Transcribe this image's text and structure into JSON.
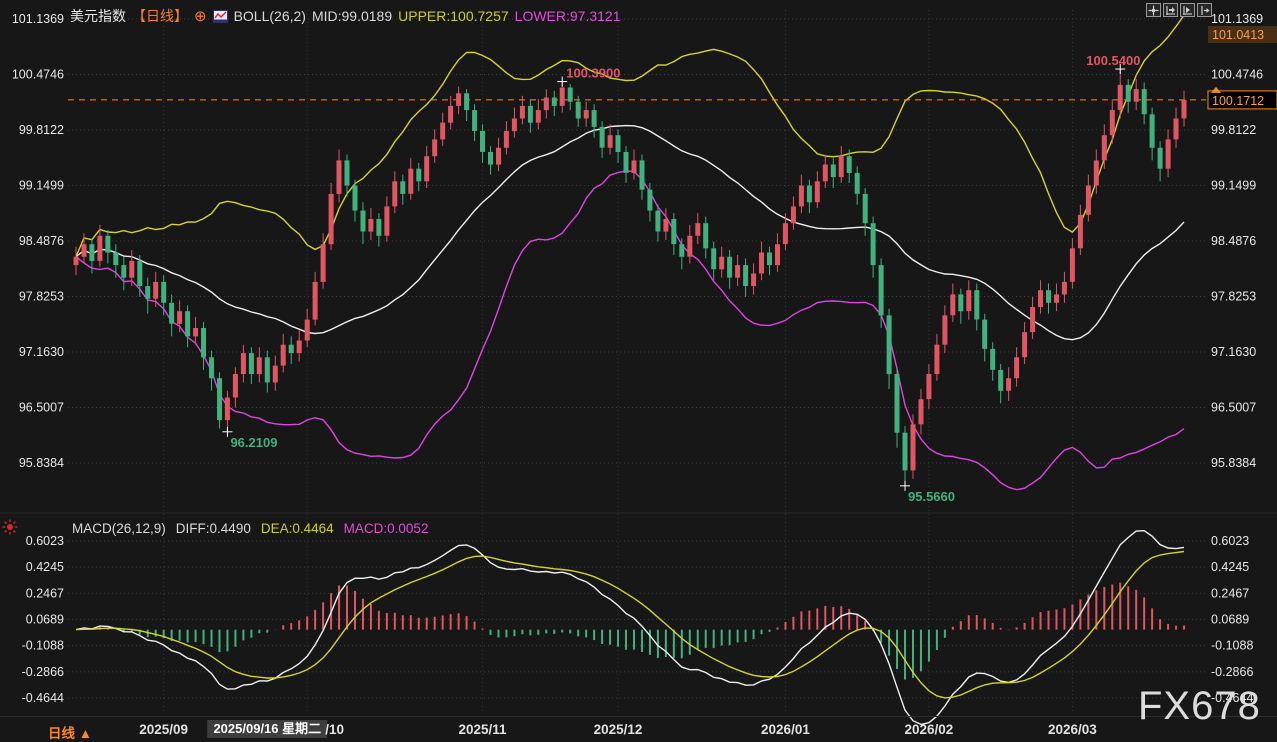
{
  "header": {
    "symbol": "美元指数",
    "period_tag": "【日线】",
    "add_icon": "⊕",
    "boll_label": "BOLL(26,2)",
    "boll_mid": "MID:99.0189",
    "boll_upper": "UPPER:100.7257",
    "boll_lower": "LOWER:97.3121"
  },
  "macd_header": {
    "label": "MACD(26,12,9)",
    "diff": "DIFF:0.4490",
    "dea": "DEA:0.4464",
    "macd": "MACD:0.0052"
  },
  "toolbar": {
    "icons": [
      "pan-tool-icon",
      "axis-scale-left-icon",
      "axis-scale-right-icon",
      "jump-to-latest-icon"
    ]
  },
  "bottom_bar": {
    "period": "日线",
    "arrow": "▲"
  },
  "watermark": "FX678",
  "colors": {
    "background": "#171717",
    "up_candle": "#e25562",
    "down_candle": "#3fb27f",
    "boll_mid": "#efefef",
    "boll_upper": "#d4d42a",
    "boll_lower": "#e044e0",
    "macd_diff_line": "#efefef",
    "macd_dea_line": "#d4d42a",
    "accent_orange": "#ff8a1e",
    "grid": "#3d3d3d",
    "axis_text": "#e8e8e8",
    "badge_high_bg": "#4a2f14",
    "badge_high_text": "#f7a243"
  },
  "chart_data": {
    "type": "candlestick",
    "title": "美元指数 日线 BOLL MACD",
    "price_axis_labels": [
      "101.1369",
      "100.4746",
      "99.8122",
      "99.1499",
      "98.4876",
      "97.8253",
      "97.1630",
      "96.5007",
      "95.8384"
    ],
    "macd_axis_labels": [
      "0.6023",
      "0.4245",
      "0.2467",
      "0.0689",
      "-0.1088",
      "-0.2866",
      "-0.4644"
    ],
    "price_ylim": [
      95.8384,
      101.1369
    ],
    "macd_ylim": [
      -0.4644,
      0.6023
    ],
    "last_price": "100.1712",
    "high_badge": "101.0413",
    "grid": "dotted",
    "legend_position": "top-left",
    "indicators": {
      "boll_period": 26,
      "boll_mult": 2,
      "macd_fast": 12,
      "macd_slow": 26,
      "macd_signal": 9
    },
    "month_ticks": [
      {
        "label": "2025/09",
        "index": 11
      },
      {
        "label": "/10",
        "index": 29
      },
      {
        "label": "2025/11",
        "index": 51
      },
      {
        "label": "2025/12",
        "index": 68
      },
      {
        "label": "2026/01",
        "index": 89
      },
      {
        "label": "2026/02",
        "index": 107
      },
      {
        "label": "2026/03",
        "index": 125
      }
    ],
    "selected_date": {
      "label": "2025/09/16 星期二",
      "index": 24
    },
    "annotations": [
      {
        "index": 19,
        "price": 96.2109,
        "text": "96.2109",
        "type": "low"
      },
      {
        "index": 61,
        "price": 100.39,
        "text": "100.3900",
        "type": "high"
      },
      {
        "index": 104,
        "price": 95.566,
        "text": "95.5660",
        "type": "low"
      },
      {
        "index": 131,
        "price": 100.54,
        "text": "100.5400",
        "type": "high"
      }
    ],
    "candles": [
      [
        98.2,
        98.42,
        98.08,
        98.3
      ],
      [
        98.3,
        98.58,
        98.22,
        98.45
      ],
      [
        98.45,
        98.52,
        98.1,
        98.25
      ],
      [
        98.25,
        98.68,
        98.18,
        98.55
      ],
      [
        98.55,
        98.62,
        98.22,
        98.35
      ],
      [
        98.35,
        98.45,
        98.05,
        98.2
      ],
      [
        98.2,
        98.3,
        97.9,
        98.05
      ],
      [
        98.05,
        98.38,
        97.95,
        98.25
      ],
      [
        98.25,
        98.32,
        97.82,
        97.95
      ],
      [
        97.95,
        98.05,
        97.62,
        97.8
      ],
      [
        97.8,
        98.12,
        97.7,
        98.0
      ],
      [
        98.0,
        98.08,
        97.6,
        97.75
      ],
      [
        97.75,
        97.85,
        97.35,
        97.5
      ],
      [
        97.5,
        97.78,
        97.4,
        97.65
      ],
      [
        97.65,
        97.72,
        97.22,
        97.35
      ],
      [
        97.35,
        97.58,
        97.25,
        97.45
      ],
      [
        97.45,
        97.52,
        96.95,
        97.1
      ],
      [
        97.1,
        97.18,
        96.7,
        96.85
      ],
      [
        96.85,
        96.92,
        96.25,
        96.35
      ],
      [
        96.35,
        96.7,
        96.2109,
        96.62
      ],
      [
        96.62,
        96.98,
        96.5,
        96.9
      ],
      [
        96.9,
        97.25,
        96.8,
        97.15
      ],
      [
        97.15,
        97.22,
        96.78,
        96.9
      ],
      [
        96.9,
        97.22,
        96.8,
        97.1
      ],
      [
        97.1,
        97.18,
        96.68,
        96.8
      ],
      [
        96.8,
        97.12,
        96.7,
        97.0
      ],
      [
        97.0,
        97.38,
        96.92,
        97.25
      ],
      [
        97.25,
        97.35,
        97.02,
        97.15
      ],
      [
        97.15,
        97.42,
        97.05,
        97.3
      ],
      [
        97.3,
        97.68,
        97.22,
        97.55
      ],
      [
        97.55,
        98.12,
        97.48,
        98.0
      ],
      [
        98.0,
        98.58,
        97.92,
        98.45
      ],
      [
        98.45,
        99.18,
        98.38,
        99.05
      ],
      [
        99.05,
        99.58,
        98.95,
        99.45
      ],
      [
        99.45,
        99.52,
        99.02,
        99.15
      ],
      [
        99.15,
        99.22,
        98.72,
        98.85
      ],
      [
        98.85,
        98.95,
        98.45,
        98.6
      ],
      [
        98.6,
        98.88,
        98.5,
        98.75
      ],
      [
        98.75,
        98.82,
        98.42,
        98.55
      ],
      [
        98.55,
        99.02,
        98.48,
        98.9
      ],
      [
        98.9,
        99.32,
        98.82,
        99.2
      ],
      [
        99.2,
        99.28,
        98.92,
        99.05
      ],
      [
        99.05,
        99.48,
        98.98,
        99.35
      ],
      [
        99.35,
        99.42,
        99.08,
        99.2
      ],
      [
        99.2,
        99.62,
        99.12,
        99.5
      ],
      [
        99.5,
        99.82,
        99.42,
        99.7
      ],
      [
        99.7,
        100.02,
        99.62,
        99.9
      ],
      [
        99.9,
        100.22,
        99.82,
        100.1
      ],
      [
        100.1,
        100.33,
        100.0,
        100.25
      ],
      [
        100.25,
        100.3,
        99.92,
        100.05
      ],
      [
        100.05,
        100.12,
        99.68,
        99.8
      ],
      [
        99.8,
        99.88,
        99.42,
        99.55
      ],
      [
        99.55,
        99.62,
        99.28,
        99.4
      ],
      [
        99.4,
        99.72,
        99.32,
        99.6
      ],
      [
        99.6,
        99.92,
        99.52,
        99.8
      ],
      [
        99.8,
        100.08,
        99.72,
        99.95
      ],
      [
        99.95,
        100.22,
        99.88,
        100.1
      ],
      [
        100.1,
        100.18,
        99.78,
        99.9
      ],
      [
        99.9,
        100.18,
        99.82,
        100.05
      ],
      [
        100.05,
        100.3,
        99.95,
        100.2
      ],
      [
        100.2,
        100.28,
        99.98,
        100.1
      ],
      [
        100.1,
        100.39,
        100.02,
        100.32
      ],
      [
        100.32,
        100.36,
        100.05,
        100.15
      ],
      [
        100.15,
        100.22,
        99.85,
        99.95
      ],
      [
        99.95,
        100.15,
        99.85,
        100.05
      ],
      [
        100.05,
        100.12,
        99.72,
        99.85
      ],
      [
        99.85,
        99.92,
        99.48,
        99.6
      ],
      [
        99.6,
        99.88,
        99.52,
        99.75
      ],
      [
        99.75,
        99.82,
        99.42,
        99.55
      ],
      [
        99.55,
        99.62,
        99.18,
        99.3
      ],
      [
        99.3,
        99.58,
        99.22,
        99.45
      ],
      [
        99.45,
        99.52,
        98.98,
        99.1
      ],
      [
        99.1,
        99.18,
        98.72,
        98.85
      ],
      [
        98.85,
        98.92,
        98.48,
        98.6
      ],
      [
        98.6,
        98.88,
        98.5,
        98.75
      ],
      [
        98.75,
        98.82,
        98.32,
        98.45
      ],
      [
        98.45,
        98.52,
        98.15,
        98.3
      ],
      [
        98.3,
        98.68,
        98.22,
        98.55
      ],
      [
        98.55,
        98.82,
        98.45,
        98.7
      ],
      [
        98.7,
        98.78,
        98.28,
        98.4
      ],
      [
        98.4,
        98.48,
        98.02,
        98.15
      ],
      [
        98.15,
        98.42,
        98.05,
        98.3
      ],
      [
        98.3,
        98.38,
        97.92,
        98.05
      ],
      [
        98.05,
        98.32,
        97.95,
        98.2
      ],
      [
        98.2,
        98.28,
        97.82,
        97.95
      ],
      [
        97.95,
        98.22,
        97.85,
        98.1
      ],
      [
        98.1,
        98.48,
        98.02,
        98.35
      ],
      [
        98.35,
        98.42,
        98.08,
        98.2
      ],
      [
        98.2,
        98.58,
        98.12,
        98.45
      ],
      [
        98.45,
        98.82,
        98.38,
        98.7
      ],
      [
        98.7,
        99.02,
        98.62,
        98.9
      ],
      [
        98.9,
        99.28,
        98.82,
        99.15
      ],
      [
        99.15,
        99.22,
        98.82,
        98.95
      ],
      [
        98.95,
        99.32,
        98.88,
        99.2
      ],
      [
        99.2,
        99.52,
        99.12,
        99.4
      ],
      [
        99.4,
        99.48,
        99.12,
        99.25
      ],
      [
        99.25,
        99.62,
        99.18,
        99.5
      ],
      [
        99.5,
        99.58,
        99.18,
        99.3
      ],
      [
        99.3,
        99.38,
        98.92,
        99.05
      ],
      [
        99.05,
        99.12,
        98.55,
        98.7
      ],
      [
        98.7,
        98.78,
        98.05,
        98.2
      ],
      [
        98.2,
        98.28,
        97.45,
        97.6
      ],
      [
        97.6,
        97.68,
        96.72,
        96.9
      ],
      [
        96.9,
        96.98,
        96.02,
        96.2
      ],
      [
        96.2,
        96.28,
        95.566,
        95.75
      ],
      [
        95.75,
        96.42,
        95.65,
        96.3
      ],
      [
        96.3,
        96.72,
        96.18,
        96.6
      ],
      [
        96.6,
        97.02,
        96.48,
        96.9
      ],
      [
        96.9,
        97.38,
        96.82,
        97.25
      ],
      [
        97.25,
        97.72,
        97.15,
        97.6
      ],
      [
        97.6,
        97.98,
        97.52,
        97.85
      ],
      [
        97.85,
        97.92,
        97.5,
        97.65
      ],
      [
        97.65,
        98.02,
        97.55,
        97.9
      ],
      [
        97.9,
        97.98,
        97.42,
        97.55
      ],
      [
        97.55,
        97.62,
        97.05,
        97.2
      ],
      [
        97.2,
        97.28,
        96.82,
        96.95
      ],
      [
        96.95,
        97.02,
        96.55,
        96.7
      ],
      [
        96.7,
        96.98,
        96.58,
        96.85
      ],
      [
        96.85,
        97.22,
        96.75,
        97.1
      ],
      [
        97.1,
        97.52,
        97.02,
        97.4
      ],
      [
        97.4,
        97.82,
        97.32,
        97.7
      ],
      [
        97.7,
        98.02,
        97.62,
        97.9
      ],
      [
        97.9,
        97.98,
        97.62,
        97.75
      ],
      [
        97.75,
        97.98,
        97.65,
        97.85
      ],
      [
        97.85,
        98.12,
        97.75,
        98.0
      ],
      [
        98.0,
        98.52,
        97.92,
        98.4
      ],
      [
        98.4,
        98.92,
        98.32,
        98.8
      ],
      [
        98.8,
        99.28,
        98.72,
        99.15
      ],
      [
        99.15,
        99.58,
        99.05,
        99.45
      ],
      [
        99.45,
        99.88,
        99.35,
        99.75
      ],
      [
        99.75,
        100.18,
        99.65,
        100.05
      ],
      [
        100.05,
        100.54,
        99.95,
        100.35
      ],
      [
        100.35,
        100.42,
        100.02,
        100.15
      ],
      [
        100.15,
        100.42,
        100.05,
        100.3
      ],
      [
        100.3,
        100.38,
        99.88,
        100.0
      ],
      [
        100.0,
        100.08,
        99.45,
        99.6
      ],
      [
        99.6,
        99.68,
        99.2,
        99.35
      ],
      [
        99.35,
        99.82,
        99.25,
        99.7
      ],
      [
        99.7,
        100.08,
        99.6,
        99.95
      ],
      [
        99.95,
        100.28,
        99.85,
        100.1712
      ]
    ]
  }
}
